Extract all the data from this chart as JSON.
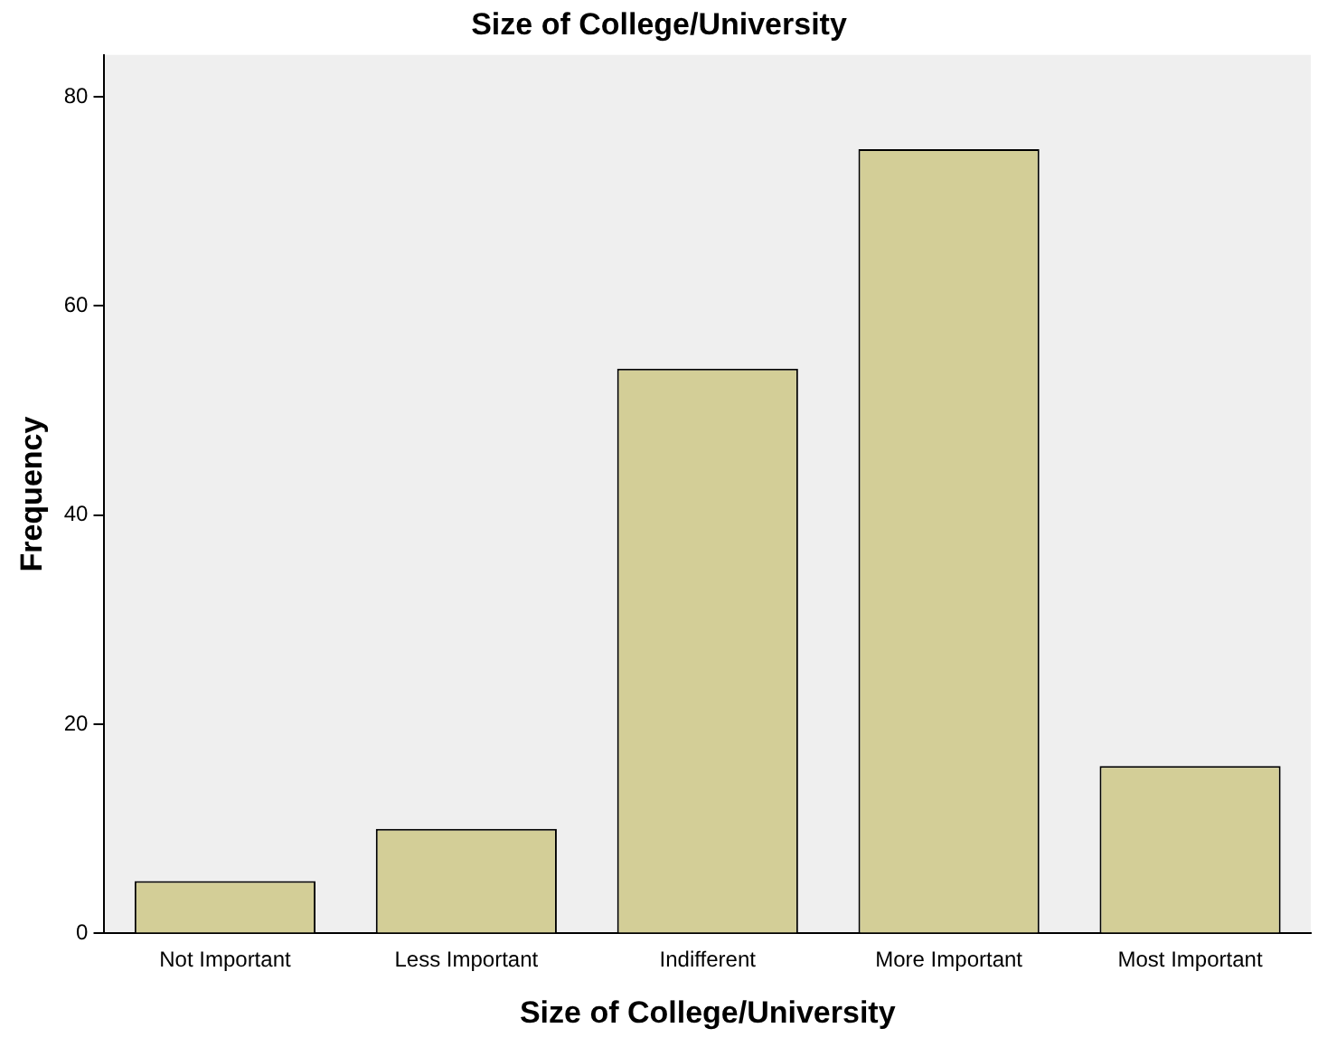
{
  "chart_data": {
    "type": "bar",
    "title": "Size of College/University",
    "xlabel": "Size of College/University",
    "ylabel": "Frequency",
    "categories": [
      "Not Important",
      "Less Important",
      "Indifferent",
      "More Important",
      "Most Important"
    ],
    "values": [
      5,
      10,
      54,
      75,
      16
    ],
    "color": "#d3ce97",
    "ylim": [
      0,
      84
    ],
    "yticks": [
      0,
      20,
      40,
      60,
      80
    ],
    "grid": false,
    "legend": false
  }
}
